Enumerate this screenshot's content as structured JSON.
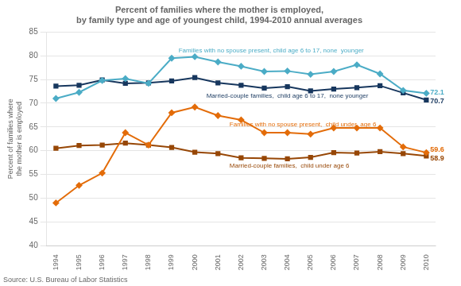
{
  "chart_data": {
    "type": "line",
    "title": "Percent of families where the mother is employed,\nby family type and age of youngest child, 1994-2010 annual averages",
    "ylabel": "Percent of families where\nthe mother is employed",
    "source": "Source: U.S. Bureau of Labor Statistics",
    "x": [
      1994,
      1995,
      1996,
      1997,
      1998,
      1999,
      2000,
      2001,
      2002,
      2003,
      2004,
      2005,
      2006,
      2007,
      2008,
      2009,
      2010
    ],
    "xlim": [
      1993.6,
      2010.4
    ],
    "xticks": [
      1994,
      1995,
      1996,
      1997,
      1998,
      1999,
      2000,
      2001,
      2002,
      2003,
      2004,
      2005,
      2006,
      2007,
      2008,
      2009,
      2010
    ],
    "ylim": [
      40,
      85
    ],
    "yticks": [
      40,
      45,
      50,
      55,
      60,
      65,
      70,
      75,
      80,
      85
    ],
    "grid": "y",
    "series": [
      {
        "name": "Families with no spouse present, child age 6 to 17, none  younger",
        "color": "#4BACC6",
        "marker": "diamond",
        "values": [
          71.0,
          72.3,
          74.8,
          75.2,
          74.2,
          79.5,
          79.8,
          78.7,
          77.8,
          76.7,
          76.8,
          76.1,
          76.7,
          78.1,
          76.2,
          72.7,
          72.1
        ]
      },
      {
        "name": "Married-couple families,  child age 6 to 17,  none younger",
        "color": "#17375E",
        "marker": "square",
        "values": [
          73.6,
          73.8,
          74.9,
          74.2,
          74.3,
          74.7,
          75.4,
          74.3,
          73.8,
          73.2,
          73.5,
          72.6,
          73.0,
          73.3,
          73.7,
          72.2,
          70.7
        ]
      },
      {
        "name": "Families with no spouse present,  child under  age 6",
        "color": "#E36C09",
        "marker": "diamond",
        "values": [
          49.0,
          52.7,
          55.3,
          63.8,
          61.2,
          68.0,
          69.2,
          67.4,
          66.5,
          63.8,
          63.8,
          63.5,
          64.8,
          64.8,
          64.8,
          60.8,
          59.6
        ]
      },
      {
        "name": "Married-couple families,  child under age 6",
        "color": "#974706",
        "marker": "square",
        "values": [
          60.5,
          61.1,
          61.2,
          61.6,
          61.2,
          60.7,
          59.7,
          59.4,
          58.5,
          58.4,
          58.3,
          58.6,
          59.6,
          59.5,
          59.8,
          59.4,
          58.9
        ]
      }
    ],
    "annotations": [
      {
        "text": "Families with no spouse present, child age 6 to 17, none  younger",
        "x": 1999.3,
        "y": 81.0,
        "color": "#4BACC6"
      },
      {
        "text": "Married-couple families,  child age 6 to 17,  none younger",
        "x": 2000.5,
        "y": 71.5,
        "color": "#17375E"
      },
      {
        "text": "Families with no spouse present,  child under  age 6",
        "x": 2001.5,
        "y": 65.5,
        "color": "#E36C09"
      },
      {
        "text": "Married-couple families,  child under age 6",
        "x": 2001.5,
        "y": 56.8,
        "color": "#974706"
      }
    ],
    "end_labels": [
      {
        "text": "72.1",
        "x": 2010,
        "y": 72.1,
        "color": "#4BACC6"
      },
      {
        "text": "70.7",
        "x": 2010,
        "y": 70.7,
        "color": "#17375E"
      },
      {
        "text": "59.6",
        "x": 2010,
        "y": 59.6,
        "color": "#E36C09"
      },
      {
        "text": "58.9",
        "x": 2010,
        "y": 58.9,
        "color": "#974706"
      }
    ]
  }
}
